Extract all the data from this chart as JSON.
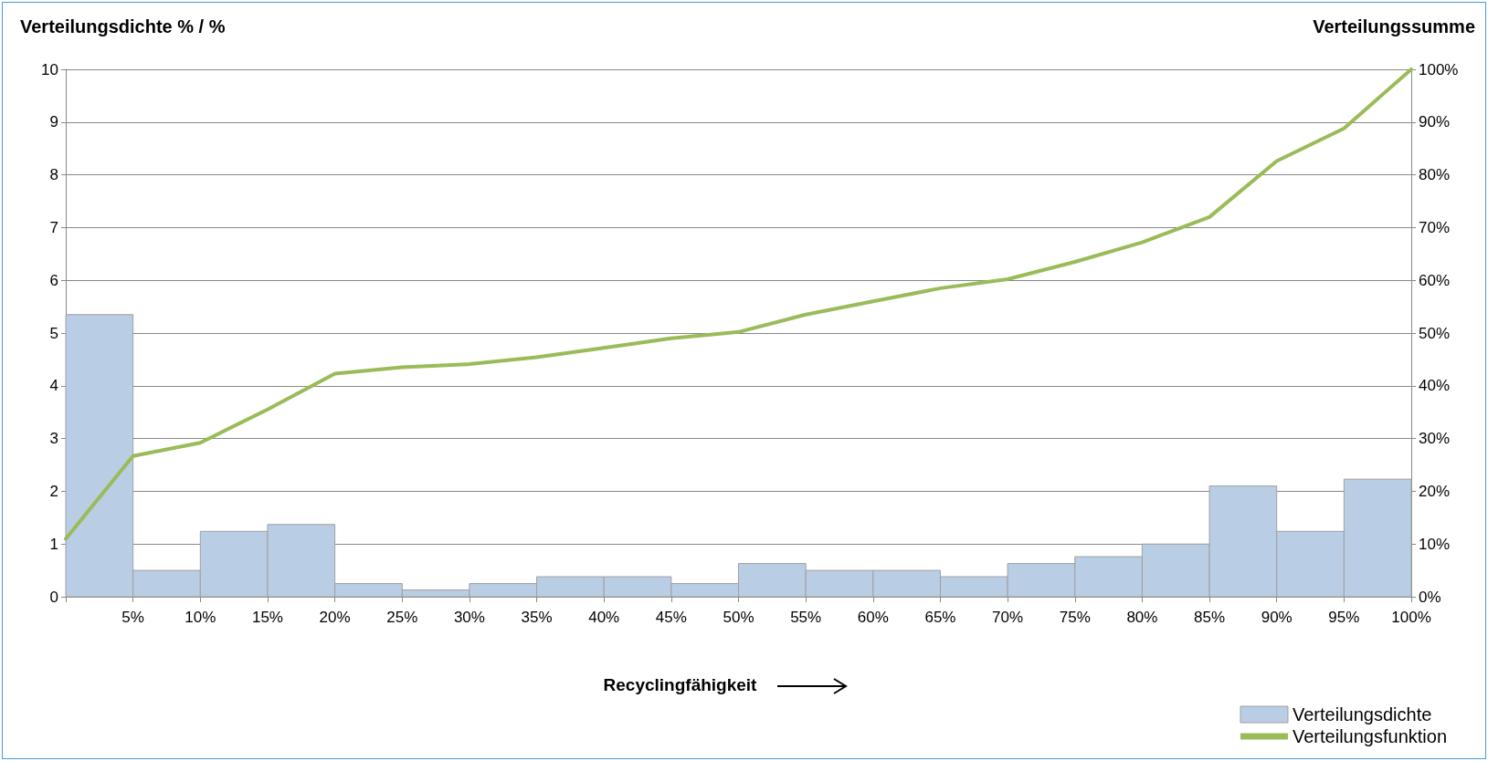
{
  "chart_data": {
    "type": "histogram",
    "xlabel": "Recyclingfähigkeit",
    "ylabel": "Verteilungsdichte % / %",
    "y2label": "Verteilungssumme",
    "bins": [
      0,
      5,
      10,
      15,
      20,
      25,
      30,
      35,
      40,
      45,
      50,
      55,
      60,
      65,
      70,
      75,
      80,
      85,
      90,
      95,
      100
    ],
    "series": [
      {
        "name": "Verteilungsdichte",
        "color": "#b9cde5",
        "values": [
          5.35,
          0.5,
          1.24,
          1.37,
          0.25,
          0.13,
          0.25,
          0.38,
          0.38,
          0.25,
          0.63,
          0.5,
          0.5,
          0.38,
          0.63,
          0.76,
          1.0,
          2.1,
          1.24,
          2.23
        ]
      },
      {
        "name": "Verteilungsfunktion",
        "type": "line",
        "axis": "y2",
        "color": "#9bbb59",
        "x": [
          0,
          5,
          10,
          15,
          20,
          25,
          30,
          35,
          40,
          45,
          50,
          55,
          60,
          65,
          70,
          75,
          80,
          85,
          90,
          95,
          100
        ],
        "values": [
          11,
          26.7,
          29.2,
          35.5,
          42.3,
          43.5,
          44.1,
          45.4,
          47.2,
          49.0,
          50.2,
          53.5,
          56.0,
          58.5,
          60.2,
          63.5,
          67.2,
          72.0,
          82.6,
          88.8,
          100
        ]
      }
    ],
    "xlim": [
      0,
      100
    ],
    "xticks": [
      {
        "value": 0,
        "label": null
      },
      {
        "value": 5,
        "label": "5%"
      },
      {
        "value": 10,
        "label": "10%"
      },
      {
        "value": 15,
        "label": "15%"
      },
      {
        "value": 20,
        "label": "20%"
      },
      {
        "value": 25,
        "label": "25%"
      },
      {
        "value": 30,
        "label": "30%"
      },
      {
        "value": 35,
        "label": "35%"
      },
      {
        "value": 40,
        "label": "40%"
      },
      {
        "value": 45,
        "label": "45%"
      },
      {
        "value": 50,
        "label": "50%"
      },
      {
        "value": 55,
        "label": "55%"
      },
      {
        "value": 60,
        "label": "60%"
      },
      {
        "value": 65,
        "label": "65%"
      },
      {
        "value": 70,
        "label": "70%"
      },
      {
        "value": 75,
        "label": "75%"
      },
      {
        "value": 80,
        "label": "80%"
      },
      {
        "value": 85,
        "label": "85%"
      },
      {
        "value": 90,
        "label": "90%"
      },
      {
        "value": 95,
        "label": "95%"
      },
      {
        "value": 100,
        "label": "100%"
      }
    ],
    "ylim": [
      0,
      10
    ],
    "yticks": [
      0,
      1,
      2,
      3,
      4,
      5,
      6,
      7,
      8,
      9,
      10
    ],
    "y2lim": [
      0,
      100
    ],
    "y2ticks": [
      {
        "value": 0,
        "label": "0%"
      },
      {
        "value": 10,
        "label": "10%"
      },
      {
        "value": 20,
        "label": "20%"
      },
      {
        "value": 30,
        "label": "30%"
      },
      {
        "value": 40,
        "label": "40%"
      },
      {
        "value": 50,
        "label": "50%"
      },
      {
        "value": 60,
        "label": "60%"
      },
      {
        "value": 70,
        "label": "70%"
      },
      {
        "value": 80,
        "label": "80%"
      },
      {
        "value": 90,
        "label": "90%"
      },
      {
        "value": 100,
        "label": "100%"
      }
    ],
    "grid": "y",
    "legend": "bottom right",
    "marker": "none",
    "line_style": "solid"
  }
}
